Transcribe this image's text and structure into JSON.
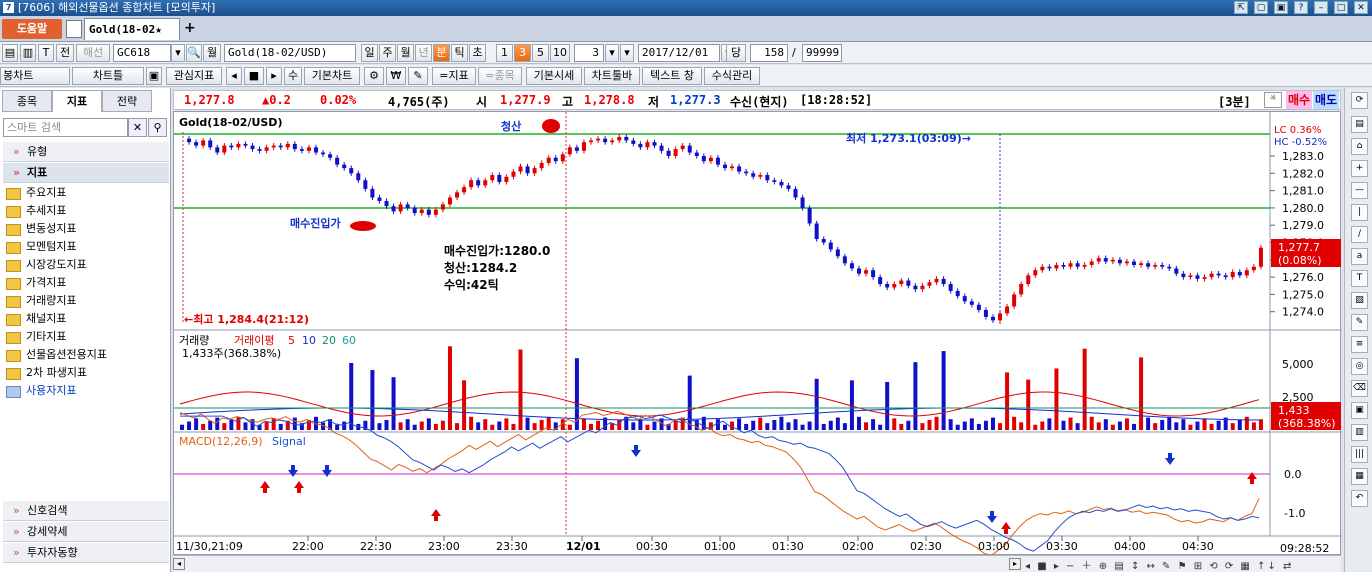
{
  "window": {
    "title": "[7606] 해외선물옵션 종합차트 [모의투자]"
  },
  "tabbar": {
    "help": "도움말",
    "doc_tab": "Gold(18-02★",
    "add": "+"
  },
  "toolbar1": {
    "jeon": "전",
    "haeseon": "해선",
    "code": "GC618",
    "wol": "월",
    "name": "Gold(18-02/USD)",
    "periods": [
      "일",
      "주",
      "월",
      "년",
      "분",
      "틱",
      "초"
    ],
    "nums": [
      "1",
      "3",
      "5",
      "10"
    ],
    "interval": "3",
    "date": "2017/12/01",
    "dang": "당",
    "count": "158",
    "slash": "/",
    "max": "99999"
  },
  "toolbar2": {
    "chart_type": "봉차트",
    "chart_tools": "차트틀",
    "fav_indicator": "관심지표",
    "minus": "수",
    "basic_chart": "기본차트",
    "w": "₩",
    "add_indicator": "=지표",
    "add_item": "=종목",
    "basic_quote": "기본시세",
    "chart_toolbar": "차트툴바",
    "text_window": "텍스트 창",
    "formula": "수식관리"
  },
  "sidebar": {
    "tabs": [
      "종목",
      "지표",
      "전략"
    ],
    "search_placeholder": "스마트 검색",
    "sections": [
      "유형",
      "지표"
    ],
    "folders": [
      "주요지표",
      "추세지표",
      "변동성지표",
      "모멘텀지표",
      "시장강도지표",
      "가격지표",
      "거래량지표",
      "채널지표",
      "기타지표",
      "선물옵션전용지표",
      "2차 파생지표",
      "사용자지표"
    ],
    "bottom": [
      "신호검색",
      "강세약세",
      "투자자동향"
    ]
  },
  "quote": {
    "price": "1,277.8",
    "change": "▲0.2",
    "pct": "0.02%",
    "volume": "4,765(주)",
    "open_lbl": "시",
    "open": "1,277.9",
    "high_lbl": "고",
    "high": "1,278.8",
    "low_lbl": "저",
    "low": "1,277.3",
    "recv": "수신(현지)",
    "time": "[18:28:52]",
    "interval": "[3분]",
    "buy": "매수",
    "sell": "매도"
  },
  "price_panel": {
    "title": "Gold(18-02/USD)",
    "lc": "LC  0.36%",
    "hc": "HC -0.52%",
    "yticks": [
      "1,283.0",
      "1,282.0",
      "1,281.0",
      "1,280.0",
      "1,279.0",
      "1,278.0",
      "1,277.0",
      "1,276.0",
      "1,275.0",
      "1,274.0"
    ],
    "last_price": "1,277.7",
    "last_pct": "(0.08%)",
    "high_note": "←최고 1,284.4(21:12)",
    "low_note": "최저 1,273.1(03:09)→",
    "exit_label": "청산",
    "entry_label": "매수진입가",
    "info": [
      "매수진입가:1280.0",
      "청산:1284.2",
      "수익:42틱"
    ]
  },
  "volume_panel": {
    "title": "거래량",
    "ma_title": "거래이평",
    "ma_periods": [
      "5",
      "10",
      "20",
      "60"
    ],
    "value": "1,433주(368.38%)",
    "yticks": [
      "5,000",
      "2,500"
    ],
    "last": "1,433",
    "last_pct": "(368.38%)"
  },
  "macd_panel": {
    "title": "MACD(12,26,9)",
    "signal": "Signal",
    "yticks": [
      "0.0",
      "-1.0"
    ]
  },
  "xaxis": {
    "labels": [
      "11/30,21:09",
      "22:00",
      "22:30",
      "23:00",
      "23:30",
      "12/01",
      "00:30",
      "01:00",
      "01:30",
      "02:00",
      "02:30",
      "03:00",
      "03:30",
      "04:00",
      "04:30"
    ],
    "clock": "09:28:52"
  },
  "colors": {
    "up": "#e00000",
    "down": "#1010c8",
    "hline": "#22b022",
    "macd": "#e06010",
    "signal": "#2050d0",
    "zero": "#d020d0"
  }
}
